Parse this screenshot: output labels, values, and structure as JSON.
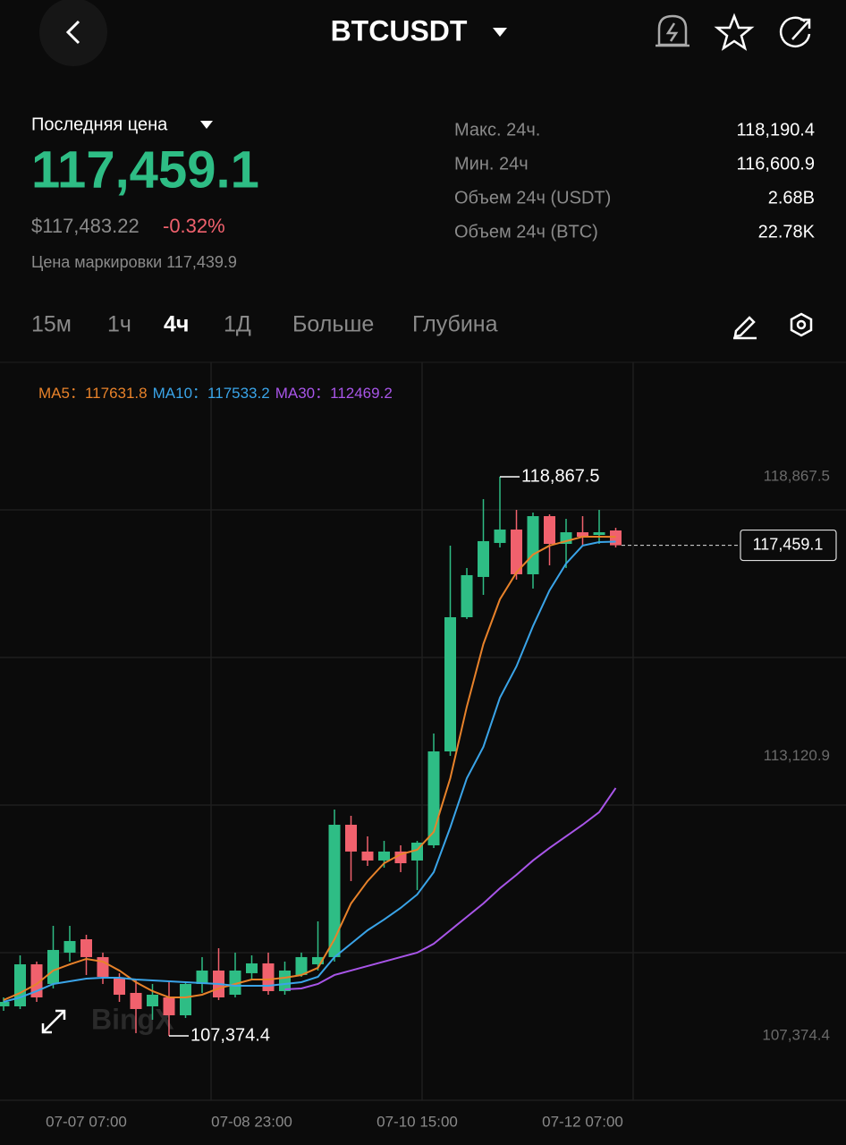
{
  "header": {
    "title": "BTCUSDT"
  },
  "price": {
    "label": "Последняя цена",
    "last": "117,459.1",
    "usd": "$117,483.22",
    "change": "-0.32%",
    "mark_label": "Цена маркировки",
    "mark": "117,439.9"
  },
  "stats": [
    {
      "label": "Макс. 24ч.",
      "value": "118,190.4"
    },
    {
      "label": "Мин. 24ч",
      "value": "116,600.9"
    },
    {
      "label": "Объем 24ч (USDT)",
      "value": "2.68B"
    },
    {
      "label": "Объем 24ч (BTC)",
      "value": "22.78K"
    }
  ],
  "tabs": [
    "15м",
    "1ч",
    "4ч",
    "1Д",
    "Больше",
    "Глубина"
  ],
  "active_tab": 2,
  "chart_data": {
    "type": "candlestick",
    "watermark": "BingX",
    "up_color": "#2ebd85",
    "down_color": "#f0616d",
    "separator": "：",
    "categories": [
      null,
      null,
      null,
      null,
      null,
      "07-07 07:00",
      null,
      null,
      null,
      null,
      null,
      null,
      null,
      null,
      null,
      "07-08 23:00",
      null,
      null,
      null,
      null,
      null,
      null,
      null,
      null,
      null,
      "07-10 15:00",
      null,
      null,
      null,
      null,
      null,
      null,
      null,
      null,
      null,
      "07-12 07:00",
      null,
      null
    ],
    "open": [
      107981,
      107981,
      108845,
      108441,
      109085,
      109360,
      108993,
      108570,
      108257,
      107981,
      108165,
      107797,
      108441,
      108717,
      108220,
      108662,
      108864,
      108294,
      108625,
      108845,
      108993,
      111714,
      111163,
      110979,
      111163,
      110979,
      111291,
      113222,
      115980,
      116808,
      117507,
      117783,
      116863,
      118058,
      117488,
      117727,
      117672,
      117764
    ],
    "high": [
      108165,
      109029,
      108901,
      109636,
      109636,
      109452,
      109085,
      108662,
      108533,
      108441,
      108478,
      108478,
      108993,
      109176,
      109085,
      109029,
      109085,
      108901,
      109085,
      109728,
      112027,
      111898,
      111475,
      111383,
      111291,
      111383,
      113590,
      117452,
      116992,
      118408,
      118867.5,
      118187,
      118132,
      118095,
      118003,
      118058,
      118187,
      117819
    ],
    "low": [
      107889,
      107926,
      108073,
      108349,
      108901,
      108625,
      108441,
      108073,
      107430,
      107705,
      107374.4,
      107742,
      108257,
      108110,
      108165,
      108533,
      108220,
      108220,
      108588,
      108717,
      108901,
      110556,
      110868,
      110832,
      110740,
      110372,
      111236,
      113130,
      115944,
      116440,
      117415,
      116753,
      116569,
      117047,
      116992,
      117452,
      117488,
      117415
    ],
    "close": [
      108073,
      108845,
      108165,
      109140,
      109324,
      108993,
      108588,
      108220,
      107926,
      108220,
      107797,
      108441,
      108717,
      108165,
      108717,
      108864,
      108294,
      108717,
      108993,
      108993,
      111714,
      111163,
      110979,
      111163,
      110923,
      111346,
      113222,
      115980,
      116845,
      117544,
      117783,
      116863,
      118058,
      117488,
      117727,
      117635,
      117727,
      117459.1
    ],
    "series": [
      {
        "name": "MA5",
        "last_label": "117631.8",
        "color": "#e8822a",
        "values": [
          108110,
          108257,
          108441,
          108717,
          108845,
          108956,
          108901,
          108717,
          108478,
          108294,
          108165,
          108165,
          108220,
          108349,
          108441,
          108533,
          108533,
          108570,
          108625,
          108772,
          109360,
          110096,
          110556,
          110923,
          111107,
          111199,
          111567,
          112670,
          114142,
          115429,
          116348,
          116900,
          117268,
          117452,
          117544,
          117635,
          117635,
          117631.8
        ]
      },
      {
        "name": "MA10",
        "last_label": "117533.2",
        "color": "#3aa4e8",
        "values": [
          108073,
          108165,
          108294,
          108441,
          108496,
          108551,
          108570,
          108570,
          108533,
          108514,
          108496,
          108478,
          108459,
          108441,
          108404,
          108404,
          108404,
          108441,
          108478,
          108588,
          108993,
          109268,
          109544,
          109765,
          110004,
          110280,
          110740,
          111659,
          112670,
          113314,
          114325,
          114969,
          115797,
          116532,
          117084,
          117452,
          117525,
          117533.2
        ]
      },
      {
        "name": "MA30",
        "last_label": "112469.2",
        "color": "#a855e8",
        "values": [
          null,
          null,
          null,
          null,
          null,
          null,
          null,
          null,
          null,
          null,
          null,
          null,
          null,
          null,
          null,
          null,
          null,
          108331,
          108349,
          108441,
          108625,
          108717,
          108809,
          108901,
          108993,
          109085,
          109268,
          109544,
          109820,
          110096,
          110409,
          110684,
          110979,
          111236,
          111475,
          111714,
          111972,
          112469.2
        ]
      }
    ],
    "ylim": [
      106050,
      121221
    ],
    "yticks": [
      {
        "value": 118867.5,
        "label": "118,867.5"
      },
      {
        "value": 113120.9,
        "label": "113,120.9"
      },
      {
        "value": 107374.4,
        "label": "107,374.4"
      }
    ],
    "max_label": "118,867.5",
    "min_label": "107,374.4",
    "last_label": "117,459.1"
  }
}
